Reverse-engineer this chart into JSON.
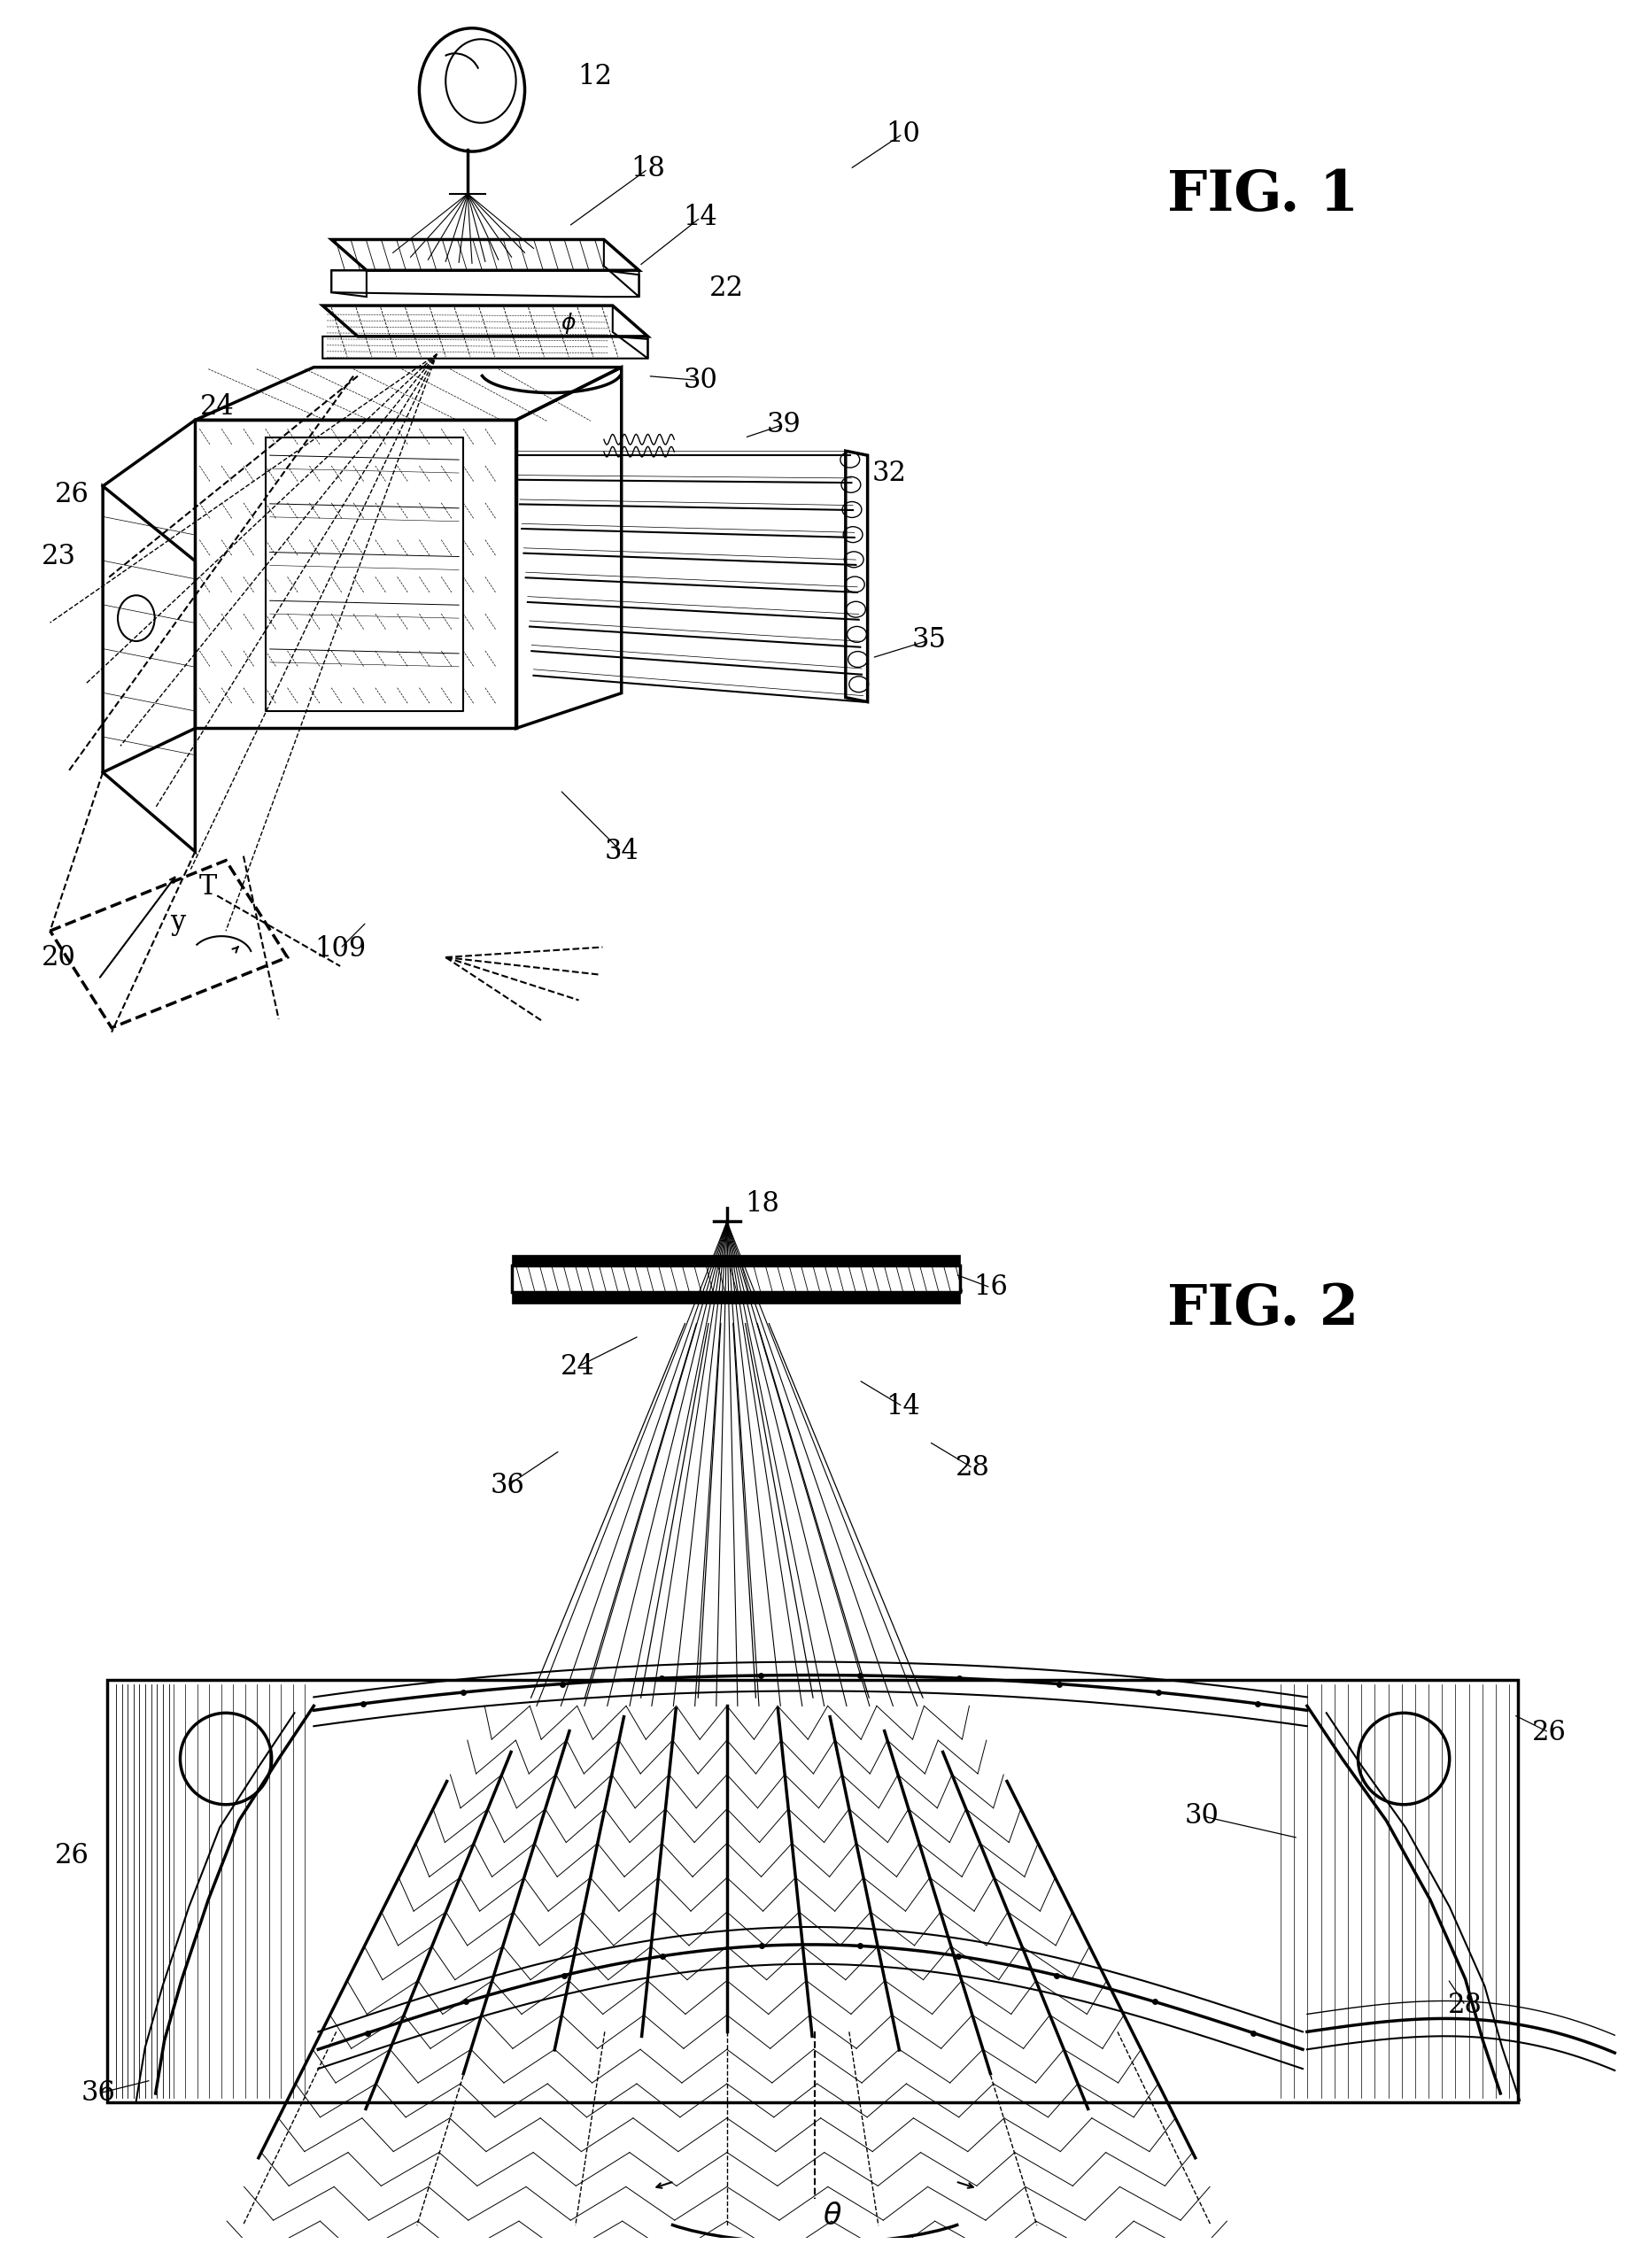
{
  "bg_color": "#ffffff",
  "fig_width": 18.62,
  "fig_height": 25.34,
  "fig1_label": "FIG. 1",
  "fig2_label": "FIG. 2"
}
